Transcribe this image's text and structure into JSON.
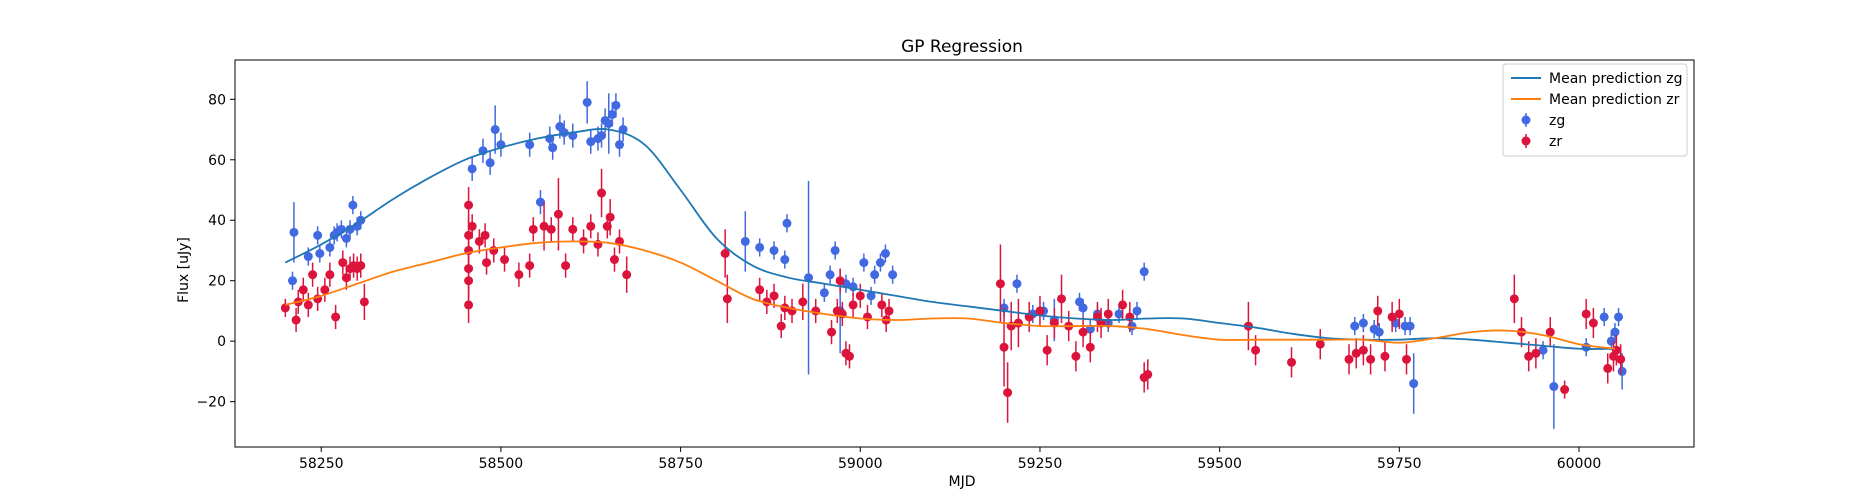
{
  "chart_data": {
    "type": "scatter",
    "title": "GP Regression",
    "xlabel": "MJD",
    "ylabel": "Flux [uJy]",
    "xlim": [
      58130,
      60160
    ],
    "ylim": [
      -35,
      93
    ],
    "xticks": [
      58250,
      58500,
      58750,
      59000,
      59250,
      59500,
      59750,
      60000
    ],
    "yticks": [
      -20,
      0,
      20,
      40,
      60,
      80
    ],
    "grid": false,
    "legend_position": "upper right",
    "legend": [
      "Mean prediction zg",
      "Mean prediction zr",
      "zg",
      "zr"
    ],
    "colors": {
      "zg_line": "#1f77b4",
      "zr_line": "#ff7f0e",
      "zg_points": "#4169e1",
      "zr_points": "#dc143c"
    },
    "series": [
      {
        "name": "Mean prediction zg",
        "kind": "line",
        "x": [
          58200,
          58250,
          58300,
          58350,
          58400,
          58450,
          58500,
          58550,
          58600,
          58650,
          58700,
          58750,
          58800,
          58850,
          58900,
          58950,
          59000,
          59050,
          59100,
          59150,
          59200,
          59250,
          59300,
          59350,
          59400,
          59450,
          59500,
          59550,
          59600,
          59650,
          59700,
          59750,
          59800,
          59850,
          59900,
          59950,
          60000,
          60050
        ],
        "y": [
          26,
          32,
          39,
          47,
          54,
          60,
          64,
          67,
          69,
          70,
          65,
          50,
          34,
          25,
          21,
          19,
          17,
          15,
          13,
          11.5,
          10,
          8.5,
          7.5,
          7,
          7.5,
          7.5,
          6,
          4.5,
          2.5,
          1,
          0.5,
          0.5,
          1,
          0.5,
          -0.5,
          -1.5,
          -2.5,
          -2.5
        ]
      },
      {
        "name": "Mean prediction zr",
        "kind": "line",
        "x": [
          58200,
          58250,
          58300,
          58350,
          58400,
          58450,
          58500,
          58550,
          58600,
          58650,
          58700,
          58750,
          58800,
          58850,
          58900,
          58950,
          59000,
          59050,
          59100,
          59150,
          59200,
          59250,
          59300,
          59350,
          59400,
          59450,
          59500,
          59550,
          59600,
          59650,
          59700,
          59750,
          59800,
          59850,
          59900,
          59950,
          60000,
          60050
        ],
        "y": [
          12,
          15,
          19,
          23,
          26,
          29,
          31,
          32.5,
          33,
          32.5,
          30,
          26,
          20,
          14,
          11,
          9,
          7.5,
          7,
          7.5,
          7.5,
          6,
          5,
          5,
          5,
          4,
          2,
          0.5,
          0.5,
          0.5,
          0.5,
          0.5,
          -0.5,
          1,
          3,
          3.5,
          2,
          -1,
          -2.5
        ]
      },
      {
        "name": "zg",
        "kind": "errorbar",
        "x": [
          58210,
          58212,
          58232,
          58245,
          58248,
          58262,
          58268,
          58272,
          58278,
          58285,
          58290,
          58294,
          58300,
          58305,
          58460,
          58475,
          58485,
          58492,
          58500,
          58540,
          58555,
          58568,
          58572,
          58582,
          58588,
          58600,
          58620,
          58625,
          58635,
          58640,
          58645,
          58650,
          58655,
          58660,
          58665,
          58670,
          58840,
          58860,
          58880,
          58895,
          58898,
          58928,
          58950,
          58958,
          58965,
          58972,
          58980,
          58990,
          59005,
          59015,
          59020,
          59028,
          59035,
          59045,
          59200,
          59218,
          59240,
          59255,
          59270,
          59305,
          59310,
          59320,
          59330,
          59345,
          59360,
          59378,
          59385,
          59395,
          59688,
          59700,
          59715,
          59722,
          59745,
          59758,
          59765,
          59770,
          59950,
          59965,
          60010,
          60035,
          60045,
          60050,
          60055,
          60060
        ],
        "y": [
          20,
          36,
          28,
          35,
          29,
          31,
          35,
          36,
          37,
          34,
          37,
          45,
          38,
          40,
          57,
          63,
          59,
          70,
          65,
          65,
          46,
          67,
          64,
          71,
          69,
          68,
          79,
          66,
          67,
          68,
          73,
          72,
          75,
          78,
          65,
          70,
          33,
          31,
          30,
          27,
          39,
          21,
          16,
          22,
          30,
          10,
          19,
          18,
          26,
          15,
          22,
          26,
          29,
          22,
          11,
          19,
          9,
          10,
          7,
          13,
          11,
          4,
          9,
          6,
          9,
          5,
          10,
          23,
          5,
          6,
          4,
          3,
          6,
          5,
          5,
          -14,
          -3,
          -15,
          -2,
          8,
          0,
          3,
          8,
          -10
        ],
        "err": [
          3,
          10,
          3,
          3,
          3,
          3,
          3,
          3,
          3,
          3,
          3,
          3,
          3,
          3,
          4,
          4,
          4,
          8,
          4,
          4,
          4,
          4,
          4,
          4,
          4,
          4,
          7,
          4,
          4,
          4,
          4,
          10,
          4,
          4,
          4,
          4,
          10,
          3,
          3,
          3,
          3,
          32,
          3,
          3,
          3,
          14,
          3,
          3,
          3,
          3,
          3,
          3,
          3,
          3,
          3,
          3,
          3,
          3,
          7,
          3,
          3,
          3,
          3,
          3,
          3,
          3,
          3,
          3,
          3,
          3,
          3,
          3,
          3,
          3,
          3,
          10,
          3,
          14,
          3,
          3,
          3,
          3,
          3,
          6
        ]
      },
      {
        "name": "zr",
        "kind": "errorbar",
        "x": [
          58200,
          58215,
          58218,
          58225,
          58232,
          58238,
          58245,
          58255,
          58262,
          58270,
          58280,
          58285,
          58290,
          58295,
          58300,
          58305,
          58310,
          58455,
          58455,
          58455,
          58455,
          58455,
          58455,
          58460,
          58470,
          58478,
          58480,
          58490,
          58505,
          58525,
          58540,
          58545,
          58560,
          58570,
          58580,
          58590,
          58600,
          58615,
          58625,
          58635,
          58640,
          58648,
          58652,
          58658,
          58665,
          58675,
          58812,
          58815,
          58860,
          58870,
          58880,
          58890,
          58895,
          58905,
          58920,
          58938,
          58960,
          58968,
          58972,
          58975,
          58980,
          58985,
          58990,
          59000,
          59010,
          59030,
          59036,
          59040,
          59195,
          59200,
          59205,
          59210,
          59220,
          59235,
          59250,
          59260,
          59270,
          59280,
          59290,
          59300,
          59310,
          59320,
          59330,
          59335,
          59345,
          59365,
          59375,
          59395,
          59400,
          59540,
          59550,
          59600,
          59640,
          59680,
          59690,
          59700,
          59710,
          59720,
          59730,
          59740,
          59750,
          59760,
          59910,
          59920,
          59930,
          59940,
          59960,
          59980,
          60010,
          60020,
          60040,
          60048,
          60052,
          60058
        ],
        "y": [
          11,
          7,
          13,
          17,
          12,
          22,
          14,
          17,
          22,
          8,
          26,
          21,
          24,
          25,
          24,
          25,
          13,
          12,
          20,
          24,
          30,
          35,
          45,
          38,
          33,
          35,
          26,
          30,
          27,
          22,
          25,
          37,
          38,
          37,
          42,
          25,
          37,
          33,
          38,
          32,
          49,
          38,
          41,
          27,
          33,
          22,
          29,
          14,
          17,
          13,
          15,
          5,
          11,
          10,
          13,
          10,
          3,
          10,
          20,
          9,
          -4,
          -5,
          12,
          15,
          8,
          12,
          7,
          10,
          19,
          -2,
          -17,
          5,
          6,
          8,
          10,
          -3,
          6,
          14,
          5,
          -5,
          3,
          -2,
          8,
          6,
          9,
          12,
          8,
          -12,
          -11,
          5,
          -3,
          -7,
          -1,
          -6,
          -4,
          -3,
          -6,
          10,
          -5,
          8,
          9,
          -6,
          14,
          3,
          -5,
          -4,
          3,
          -16,
          9,
          6,
          -9,
          -5,
          -3,
          -6
        ],
        "err": [
          3,
          4,
          4,
          4,
          4,
          4,
          4,
          4,
          4,
          4,
          4,
          4,
          4,
          4,
          4,
          4,
          6,
          6,
          6,
          6,
          6,
          6,
          6,
          4,
          4,
          4,
          4,
          4,
          4,
          4,
          4,
          4,
          8,
          4,
          12,
          4,
          4,
          4,
          4,
          4,
          8,
          4,
          6,
          4,
          4,
          6,
          8,
          8,
          4,
          4,
          4,
          4,
          4,
          4,
          6,
          4,
          4,
          4,
          4,
          4,
          4,
          4,
          4,
          4,
          4,
          4,
          4,
          4,
          13,
          13,
          10,
          8,
          8,
          5,
          5,
          5,
          5,
          8,
          5,
          5,
          5,
          5,
          5,
          5,
          5,
          5,
          5,
          5,
          5,
          8,
          5,
          5,
          5,
          5,
          5,
          5,
          5,
          5,
          5,
          5,
          5,
          5,
          8,
          5,
          5,
          5,
          5,
          3,
          5,
          5,
          5,
          5,
          5,
          5
        ]
      }
    ]
  }
}
